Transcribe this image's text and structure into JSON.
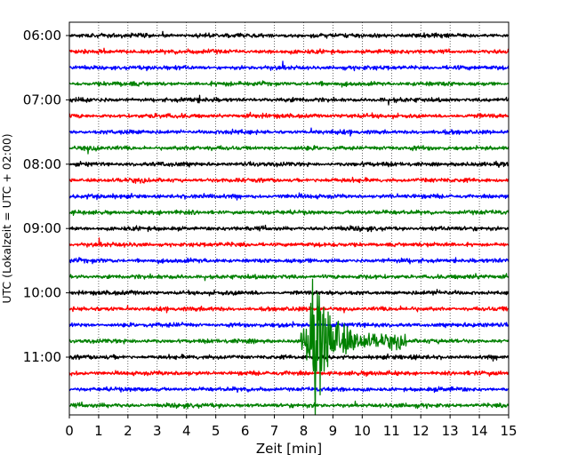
{
  "chart_data": {
    "type": "line",
    "title": "",
    "xlabel": "Zeit  [min]",
    "ylabel": "UTC (Lokalzeit = UTC + 02:00)",
    "xlim": [
      0,
      15
    ],
    "x_ticks": [
      0,
      1,
      2,
      3,
      4,
      5,
      6,
      7,
      8,
      9,
      10,
      11,
      12,
      13,
      14,
      15
    ],
    "x_tick_labels": [
      "0",
      "1",
      "2",
      "3",
      "4",
      "5",
      "6",
      "7",
      "8",
      "9",
      "10",
      "11",
      "12",
      "13",
      "14",
      "15"
    ],
    "y_tick_labels": [
      "06:00",
      "07:00",
      "08:00",
      "09:00",
      "10:00",
      "11:00"
    ],
    "grid": "vertical dotted",
    "trace_colors": [
      "#000000",
      "#ff0000",
      "#0000ff",
      "#008000"
    ],
    "traces": [
      {
        "start": "06:00"
      },
      {
        "start": "06:15"
      },
      {
        "start": "06:30"
      },
      {
        "start": "06:45"
      },
      {
        "start": "07:00"
      },
      {
        "start": "07:15"
      },
      {
        "start": "07:30"
      },
      {
        "start": "07:45"
      },
      {
        "start": "08:00"
      },
      {
        "start": "08:15"
      },
      {
        "start": "08:30"
      },
      {
        "start": "08:45"
      },
      {
        "start": "09:00"
      },
      {
        "start": "09:15"
      },
      {
        "start": "09:30"
      },
      {
        "start": "09:45"
      },
      {
        "start": "10:00"
      },
      {
        "start": "10:15"
      },
      {
        "start": "10:30"
      },
      {
        "start": "10:45"
      },
      {
        "start": "11:00"
      },
      {
        "start": "11:15"
      },
      {
        "start": "11:30"
      },
      {
        "start": "11:45"
      }
    ],
    "event": {
      "trace_start": "10:45",
      "onset_min": 7.9,
      "peak_min": 8.4,
      "coda_end_min": 11.5
    }
  }
}
